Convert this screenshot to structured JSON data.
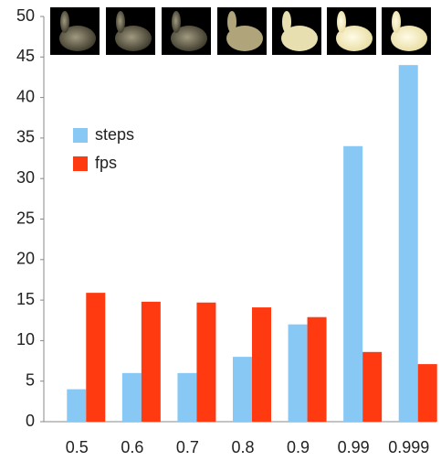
{
  "chart_data": {
    "type": "bar",
    "categories": [
      "0.5",
      "0.6",
      "0.7",
      "0.8",
      "0.9",
      "0.99",
      "0.999"
    ],
    "series": [
      {
        "name": "steps",
        "color": "#87c8f5",
        "values": [
          4,
          6,
          6,
          8,
          12,
          34,
          44
        ]
      },
      {
        "name": "fps",
        "color": "#ff3a10",
        "values": [
          15.9,
          14.8,
          14.7,
          14.1,
          12.9,
          8.6,
          7.1
        ]
      }
    ],
    "ylim": [
      0,
      50
    ],
    "yticks": [
      0,
      5,
      10,
      15,
      20,
      25,
      30,
      35,
      40,
      45,
      50
    ],
    "grid": false,
    "legend": "upper-left"
  }
}
